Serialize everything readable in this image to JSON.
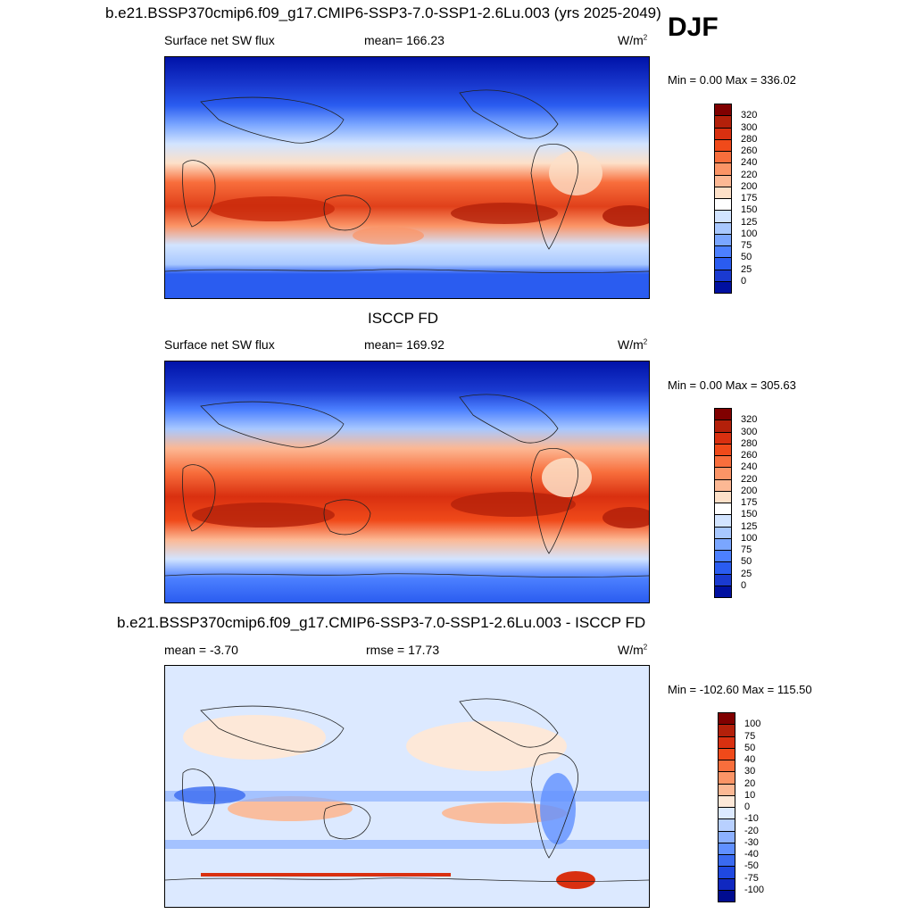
{
  "season": "DJF",
  "panels": [
    {
      "id": "model",
      "title": "b.e21.BSSP370cmip6.f09_g17.CMIP6-SSP3-7.0-SSP1-2.6Lu.003 (yrs 2025-2049)",
      "left_text": "Surface net SW flux",
      "center_text": "mean= 166.23",
      "units": "W/m",
      "units_sup": "2",
      "minmax": "Min =   0.00 Max = 336.02",
      "colorbar": {
        "labels": [
          "320",
          "300",
          "280",
          "260",
          "240",
          "220",
          "200",
          "175",
          "150",
          "125",
          "100",
          "75",
          "50",
          "25",
          "0"
        ],
        "colors": [
          "#800000",
          "#b3200a",
          "#d93010",
          "#f04a1a",
          "#f86e3c",
          "#fb9466",
          "#fcb894",
          "#fde0c8",
          "#ffffff",
          "#d2e4ff",
          "#a8c8ff",
          "#7aa6ff",
          "#4c80ff",
          "#2a5cf0",
          "#1a3ad0",
          "#0010a0"
        ]
      }
    },
    {
      "id": "obs",
      "title": "ISCCP FD",
      "left_text": "Surface net SW flux",
      "center_text": "mean= 169.92",
      "units": "W/m",
      "units_sup": "2",
      "minmax": "Min =   0.00 Max = 305.63",
      "colorbar": {
        "labels": [
          "320",
          "300",
          "280",
          "260",
          "240",
          "220",
          "200",
          "175",
          "150",
          "125",
          "100",
          "75",
          "50",
          "25",
          "0"
        ],
        "colors": [
          "#800000",
          "#b3200a",
          "#d93010",
          "#f04a1a",
          "#f86e3c",
          "#fb9466",
          "#fcb894",
          "#fde0c8",
          "#ffffff",
          "#d2e4ff",
          "#a8c8ff",
          "#7aa6ff",
          "#4c80ff",
          "#2a5cf0",
          "#1a3ad0",
          "#0010a0"
        ]
      }
    },
    {
      "id": "diff",
      "title": "b.e21.BSSP370cmip6.f09_g17.CMIP6-SSP3-7.0-SSP1-2.6Lu.003 - ISCCP FD",
      "left_text": "mean =  -3.70",
      "center_text": "rmse =  17.73",
      "units": "W/m",
      "units_sup": "2",
      "minmax": "Min = -102.60 Max = 115.50",
      "colorbar": {
        "labels": [
          "100",
          "75",
          "50",
          "40",
          "30",
          "20",
          "10",
          "0",
          "-10",
          "-20",
          "-30",
          "-40",
          "-50",
          "-75",
          "-100"
        ],
        "colors": [
          "#800000",
          "#b3200a",
          "#d93010",
          "#f04a1a",
          "#f86e3c",
          "#fb9466",
          "#fcb894",
          "#fde8d8",
          "#dce9ff",
          "#b8d0ff",
          "#8cb0ff",
          "#6090ff",
          "#3a6af0",
          "#1f48e0",
          "#1028c0",
          "#000c90"
        ]
      }
    }
  ]
}
